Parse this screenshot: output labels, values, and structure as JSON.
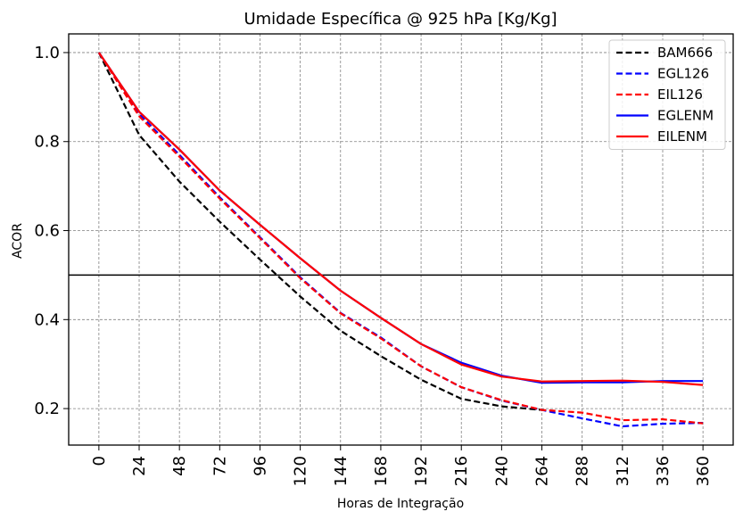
{
  "chart_data": {
    "type": "line",
    "title": "Umidade Específica @ 925 hPa [Kg/Kg]",
    "xlabel": "Horas de Integração",
    "ylabel": "ACOR",
    "x": [
      0,
      24,
      48,
      72,
      96,
      120,
      144,
      168,
      192,
      216,
      240,
      264,
      288,
      312,
      336,
      360
    ],
    "xticks": [
      "0",
      "24",
      "48",
      "72",
      "96",
      "120",
      "144",
      "168",
      "192",
      "216",
      "240",
      "264",
      "288",
      "312",
      "336",
      "360"
    ],
    "yticks": [
      "0.2",
      "0.4",
      "0.6",
      "0.8",
      "1.0"
    ],
    "ytick_values": [
      0.2,
      0.4,
      0.6,
      0.8,
      1.0
    ],
    "xlim": [
      -18,
      378
    ],
    "ylim": [
      0.118,
      1.042
    ],
    "reference_line": 0.5,
    "grid": true,
    "legend_position": "top-right",
    "series": [
      {
        "name": "BAM666",
        "color": "#000000",
        "dash": true,
        "values": [
          1.0,
          0.815,
          0.71,
          0.62,
          0.535,
          0.452,
          0.375,
          0.318,
          0.265,
          0.222,
          0.205,
          0.197,
          null,
          null,
          null,
          null
        ]
      },
      {
        "name": "EGL126",
        "color": "#0000ff",
        "dash": true,
        "values": [
          1.0,
          0.862,
          0.77,
          0.675,
          0.585,
          0.495,
          0.415,
          0.36,
          0.295,
          0.248,
          0.218,
          0.197,
          0.178,
          0.16,
          0.166,
          0.168
        ]
      },
      {
        "name": "EIL126",
        "color": "#ff0000",
        "dash": true,
        "values": [
          1.0,
          0.857,
          0.766,
          0.672,
          0.583,
          0.493,
          0.414,
          0.358,
          0.295,
          0.248,
          0.219,
          0.197,
          0.191,
          0.174,
          0.176,
          0.167
        ]
      },
      {
        "name": "EGLENM",
        "color": "#0000ff",
        "dash": false,
        "values": [
          1.0,
          0.867,
          0.782,
          0.69,
          0.613,
          0.538,
          0.465,
          0.404,
          0.345,
          0.303,
          0.274,
          0.258,
          0.259,
          0.259,
          0.262,
          0.262
        ]
      },
      {
        "name": "EILENM",
        "color": "#ff0000",
        "dash": false,
        "values": [
          1.0,
          0.867,
          0.782,
          0.69,
          0.613,
          0.538,
          0.465,
          0.404,
          0.345,
          0.299,
          0.272,
          0.261,
          0.262,
          0.263,
          0.26,
          0.253
        ]
      }
    ]
  }
}
